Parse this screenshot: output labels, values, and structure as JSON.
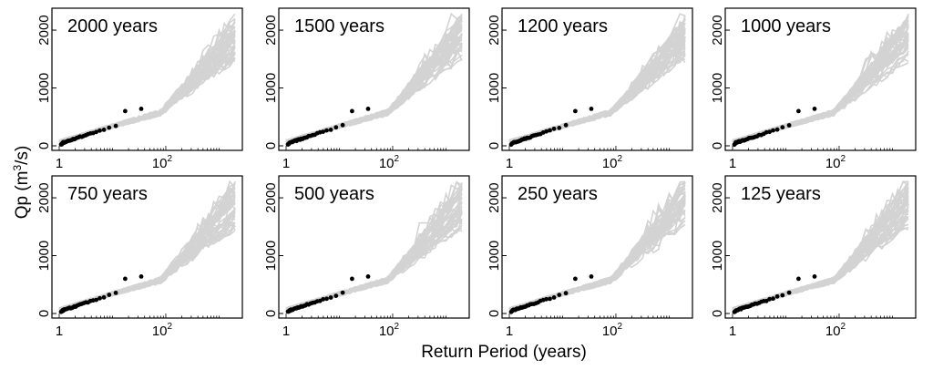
{
  "figure": {
    "ylabel": "Qp (m",
    "ylabel_sup": "3",
    "ylabel_end": "/s)",
    "xlabel": "Return Period (years)"
  },
  "chart_data": [
    {
      "type": "line",
      "title": "2000 years",
      "ylim": [
        0,
        2300
      ],
      "xlog": true,
      "yticks": [
        "0",
        "1000",
        "2000"
      ],
      "xticks_base": [
        "1",
        "10"
      ],
      "xticks_sup": [
        "",
        "2"
      ]
    },
    {
      "type": "line",
      "title": "1500 years",
      "ylim": [
        0,
        2300
      ],
      "xlog": true,
      "yticks": [
        "0",
        "1000",
        "2000"
      ],
      "xticks_base": [
        "1",
        "10"
      ],
      "xticks_sup": [
        "",
        "2"
      ]
    },
    {
      "type": "line",
      "title": "1200 years",
      "ylim": [
        0,
        2300
      ],
      "xlog": true,
      "yticks": [
        "0",
        "1000",
        "2000"
      ],
      "xticks_base": [
        "1",
        "10"
      ],
      "xticks_sup": [
        "",
        "2"
      ]
    },
    {
      "type": "line",
      "title": "1000 years",
      "ylim": [
        0,
        2300
      ],
      "xlog": true,
      "yticks": [
        "0",
        "1000",
        "2000"
      ],
      "xticks_base": [
        "1",
        "10"
      ],
      "xticks_sup": [
        "",
        "2"
      ]
    },
    {
      "type": "line",
      "title": "750 years",
      "ylim": [
        0,
        2300
      ],
      "xlog": true,
      "yticks": [
        "0",
        "1000",
        "2000"
      ],
      "xticks_base": [
        "1",
        "10"
      ],
      "xticks_sup": [
        "",
        "2"
      ]
    },
    {
      "type": "line",
      "title": "500 years",
      "ylim": [
        0,
        2300
      ],
      "xlog": true,
      "yticks": [
        "0",
        "1000",
        "2000"
      ],
      "xticks_base": [
        "1",
        "10"
      ],
      "xticks_sup": [
        "",
        "2"
      ]
    },
    {
      "type": "line",
      "title": "250 years",
      "ylim": [
        0,
        2300
      ],
      "xlog": true,
      "yticks": [
        "0",
        "1000",
        "2000"
      ],
      "xticks_base": [
        "1",
        "10"
      ],
      "xticks_sup": [
        "",
        "2"
      ]
    },
    {
      "type": "line",
      "title": "125 years",
      "ylim": [
        0,
        2300
      ],
      "xlog": true,
      "yticks": [
        "0",
        "1000",
        "2000"
      ],
      "xticks_base": [
        "1",
        "10"
      ],
      "xticks_sup": [
        "",
        "2"
      ]
    }
  ],
  "colors": {
    "simulated": "#d3d3d3",
    "observed": "#000000"
  }
}
